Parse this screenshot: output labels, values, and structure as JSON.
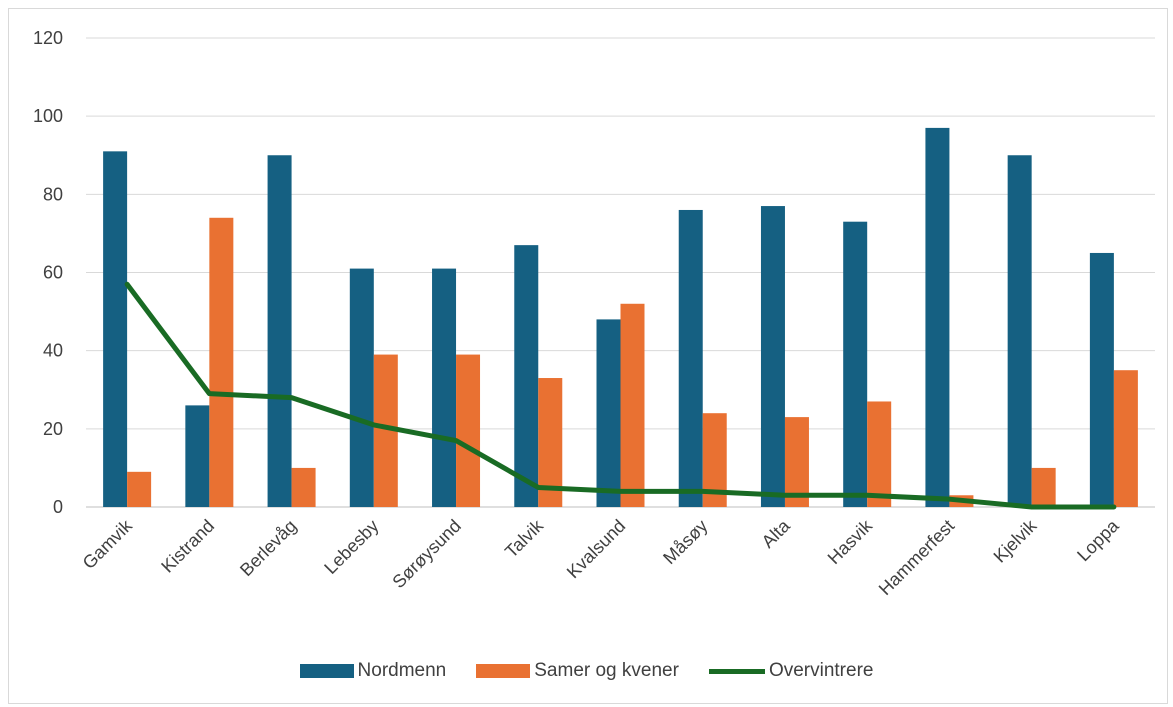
{
  "chart_data": {
    "type": "bar",
    "title": "",
    "xlabel": "",
    "ylabel": "",
    "categories": [
      "Gamvik",
      "Kistrand",
      "Berlevåg",
      "Lebesby",
      "Sørøysund",
      "Talvik",
      "Kvalsund",
      "Måsøy",
      "Alta",
      "Hasvik",
      "Hammerfest",
      "Kjelvik",
      "Loppa"
    ],
    "ylim": [
      0,
      120
    ],
    "yticks": [
      0,
      20,
      40,
      60,
      80,
      100,
      120
    ],
    "grid": true,
    "legend_position": "bottom",
    "series": [
      {
        "name": "Nordmenn",
        "type": "bar",
        "color": "#156082",
        "values": [
          91,
          26,
          90,
          61,
          61,
          67,
          48,
          76,
          77,
          73,
          97,
          90,
          65
        ]
      },
      {
        "name": "Samer og kvener",
        "type": "bar",
        "color": "#e97132",
        "values": [
          9,
          74,
          10,
          39,
          39,
          33,
          52,
          24,
          23,
          27,
          3,
          10,
          35
        ]
      },
      {
        "name": "Overvintrere",
        "type": "line",
        "color": "#196b24",
        "values": [
          57,
          29,
          28,
          21,
          17,
          5,
          4,
          4,
          3,
          3,
          2,
          0,
          0
        ]
      }
    ]
  }
}
